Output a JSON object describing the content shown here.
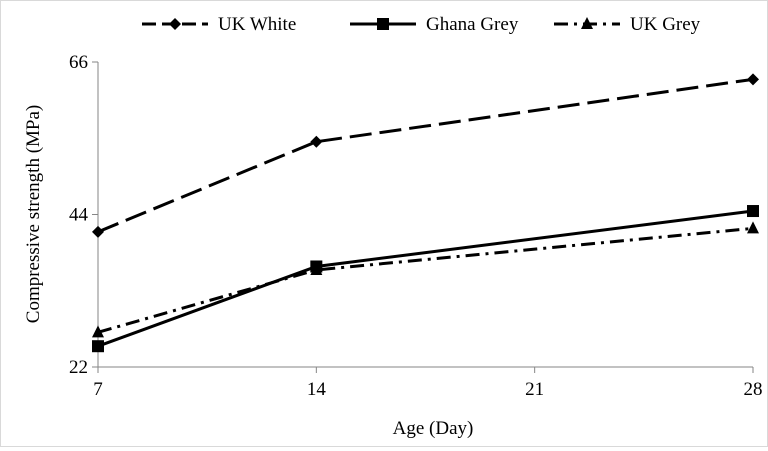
{
  "chart_data": {
    "type": "line",
    "x": [
      7,
      14,
      28
    ],
    "xticks": [
      "7",
      "14",
      "21",
      "28"
    ],
    "yticks": [
      "22",
      "44",
      "66"
    ],
    "xlim": [
      7,
      28
    ],
    "ylim": [
      22,
      66
    ],
    "xlabel": "Age (Day)",
    "ylabel": "Compressive strength (MPa)",
    "legend_position": "top",
    "grid": false,
    "series": [
      {
        "name": "UK White",
        "values": [
          41.5,
          54.5,
          63.5
        ],
        "marker": "diamond",
        "dash": "long-dash",
        "color": "#000000"
      },
      {
        "name": "Ghana Grey",
        "values": [
          25.0,
          36.5,
          44.5
        ],
        "marker": "square",
        "dash": "solid",
        "color": "#000000"
      },
      {
        "name": "UK Grey",
        "values": [
          27.0,
          36.0,
          42.0
        ],
        "marker": "triangle",
        "dash": "dash-dot",
        "color": "#000000"
      }
    ]
  }
}
